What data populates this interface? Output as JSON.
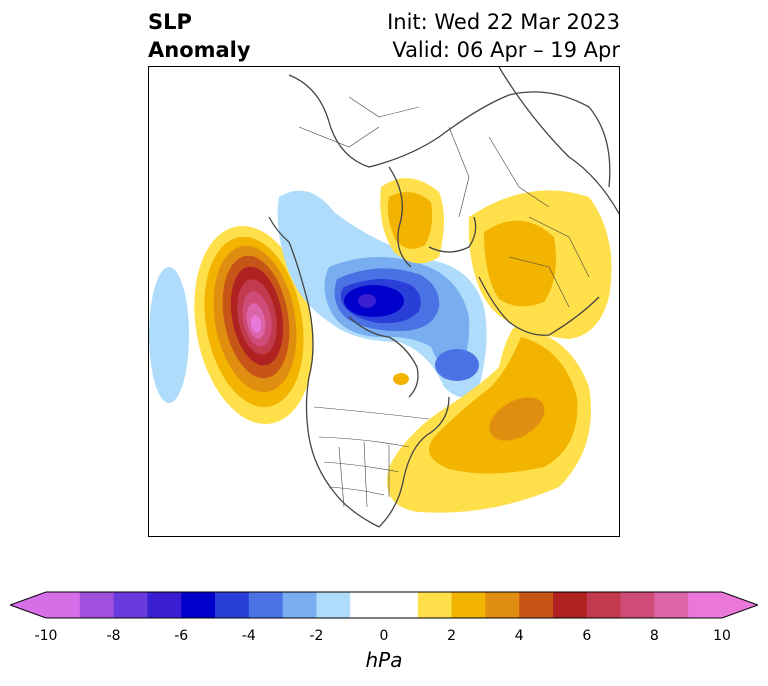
{
  "header": {
    "title_line1": "SLP",
    "title_line2": "Anomaly",
    "init": "Init: Wed 22 Mar 2023",
    "valid": "Valid: 06 Apr – 19 Apr"
  },
  "colorbar": {
    "units": "hPa",
    "tick_labels": [
      "-10",
      "-8",
      "-6",
      "-4",
      "-2",
      "0",
      "2",
      "4",
      "6",
      "8",
      "10"
    ],
    "colors": [
      "#d66ee8",
      "#a050dc",
      "#6a3bdc",
      "#3a1ed2",
      "#0000cc",
      "#2a3ed8",
      "#4a72e4",
      "#78aef0",
      "#aedcfa",
      "#ffffff",
      "#ffffff",
      "#ffe04a",
      "#f2b400",
      "#e08e10",
      "#c85518",
      "#b02222",
      "#c23a4e",
      "#cf4c78",
      "#dc64a8",
      "#ea78da"
    ],
    "extend_min_color": "#d66ee8",
    "extend_max_color": "#ea78da"
  }
}
